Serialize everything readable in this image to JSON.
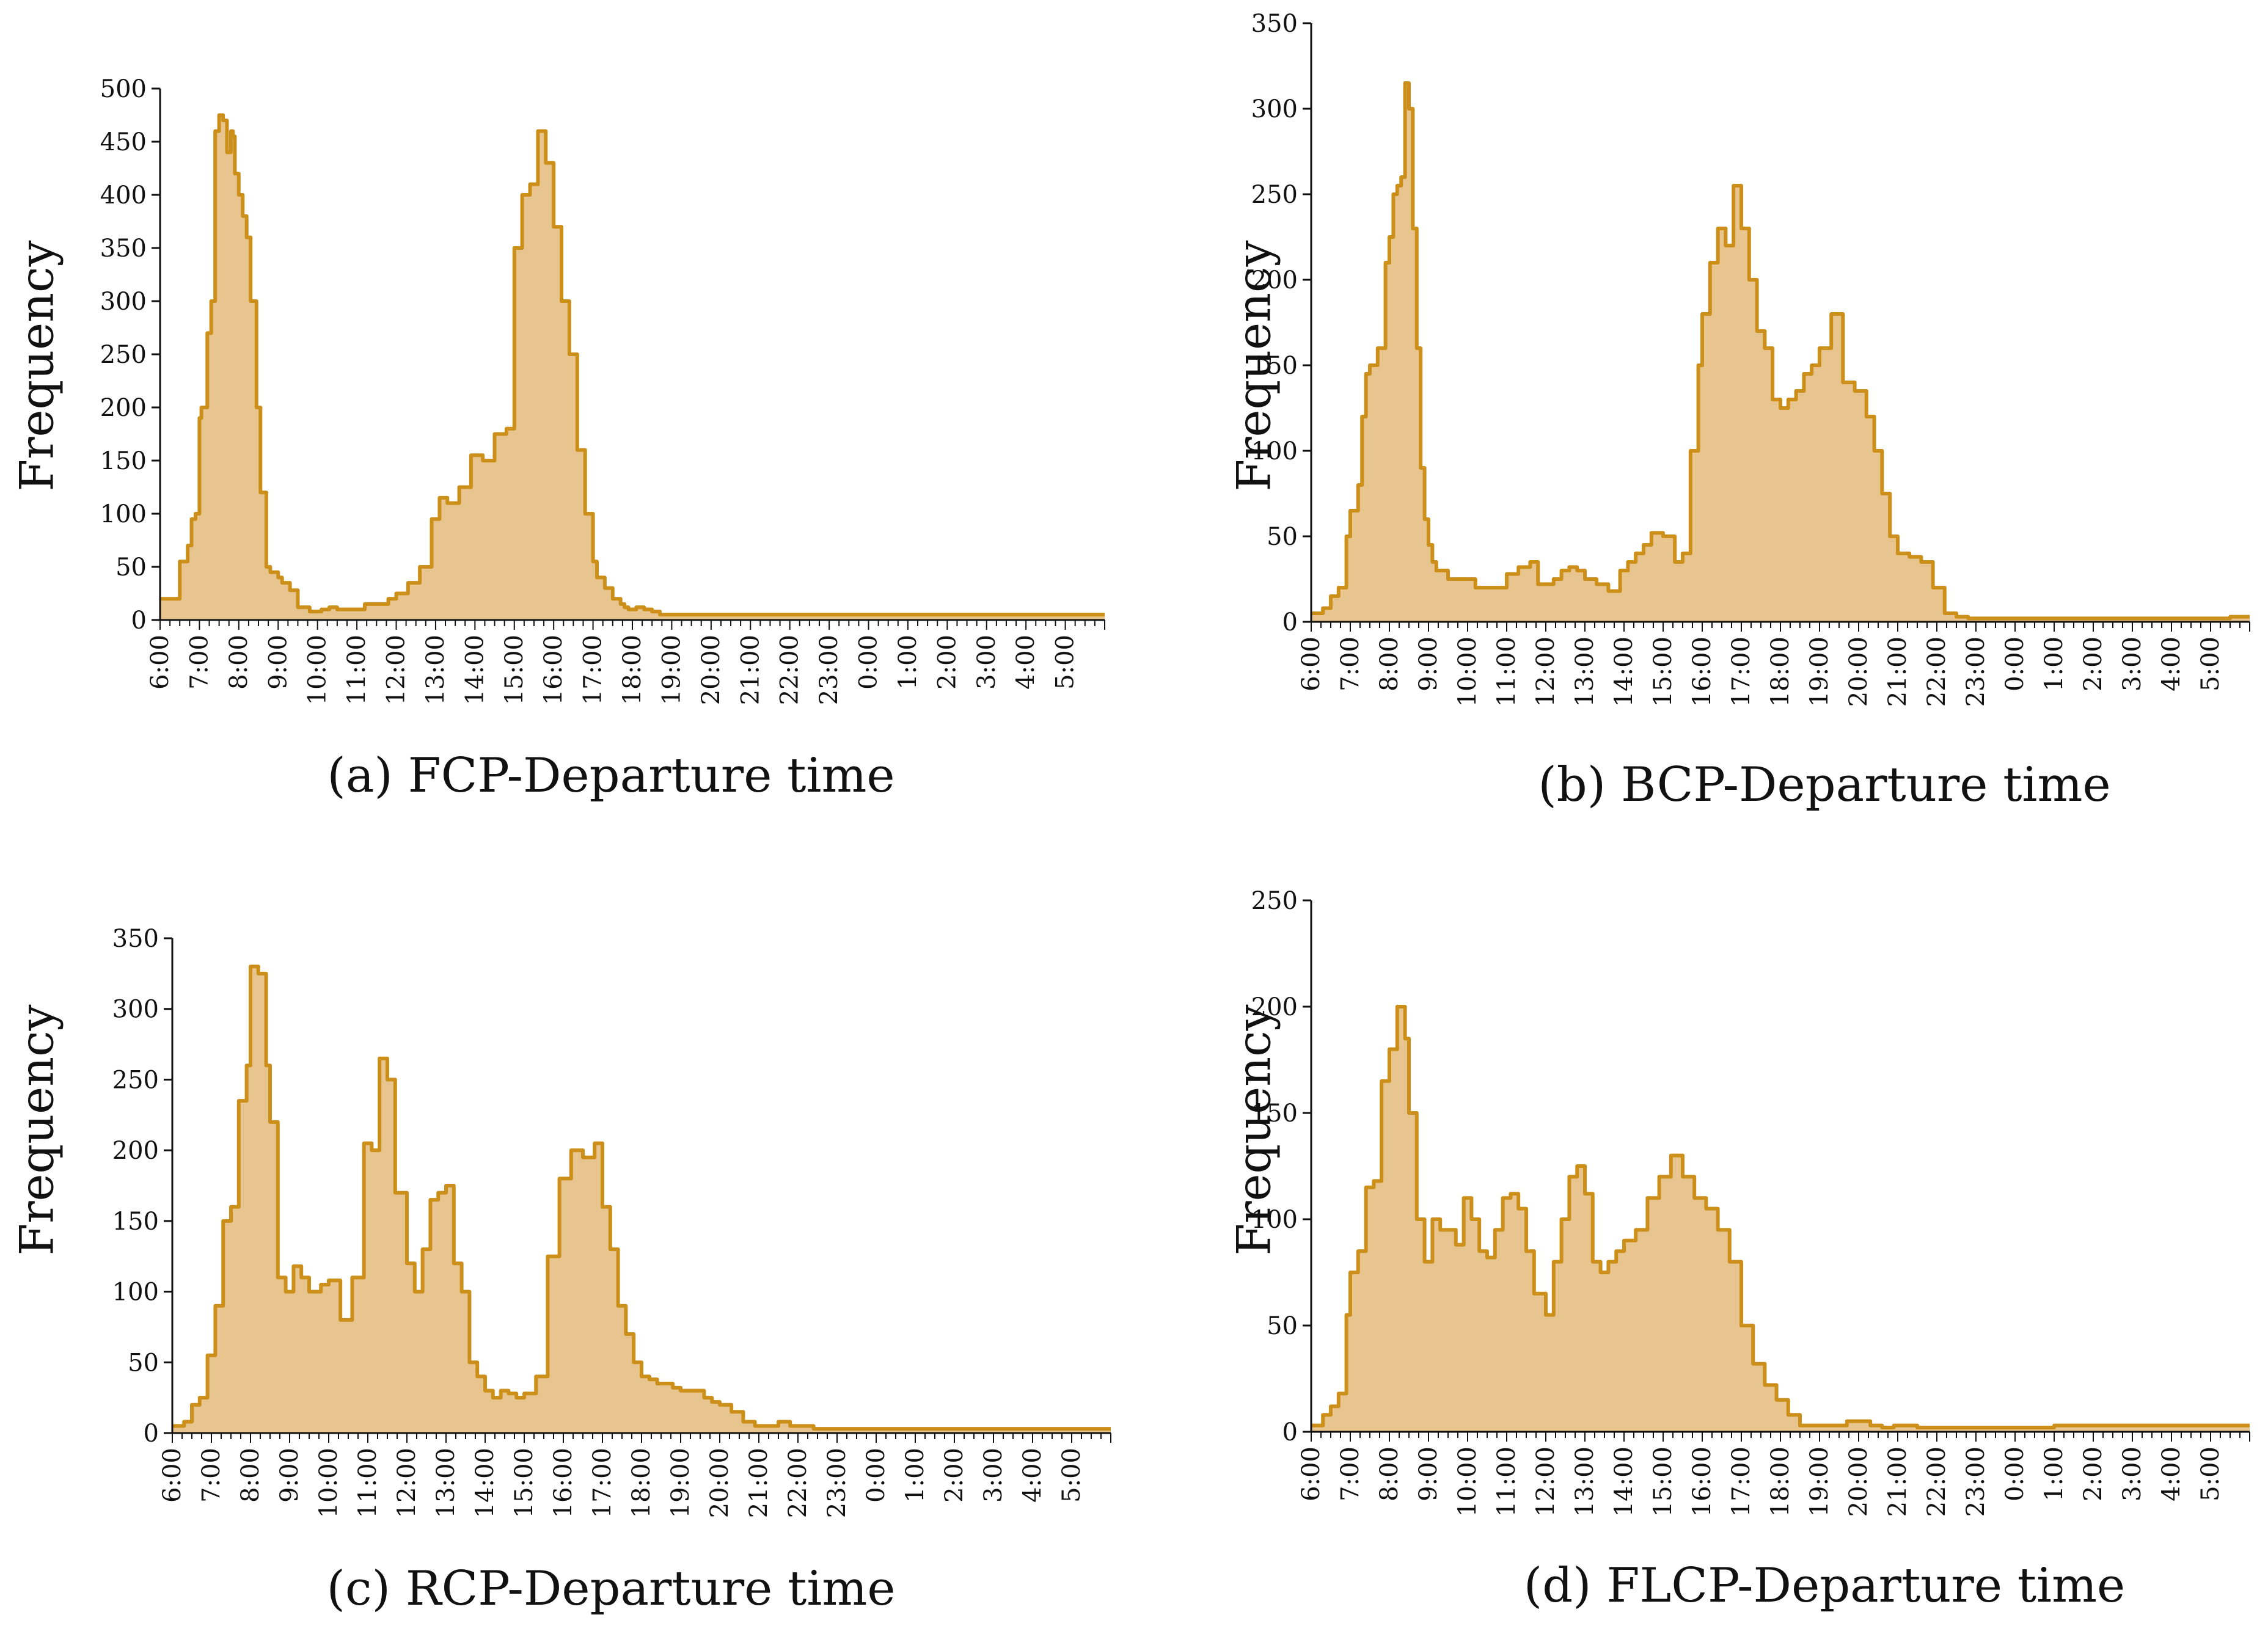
{
  "style": {
    "fill_color": "#e8c48e",
    "line_color": "#cc8f1a",
    "axis_color": "#111111"
  },
  "x_tick_labels": [
    "6:00",
    "7:00",
    "8:00",
    "9:00",
    "10:00",
    "11:00",
    "12:00",
    "13:00",
    "14:00",
    "15:00",
    "16:00",
    "17:00",
    "18:00",
    "19:00",
    "20:00",
    "21:00",
    "22:00",
    "23:00",
    "0:00",
    "1:00",
    "2:00",
    "3:00",
    "4:00",
    "5:00"
  ],
  "chart_data": [
    {
      "type": "area",
      "panel": "a",
      "title": "(a) FCP-Departure time",
      "xlabel": "",
      "ylabel": "Frequency",
      "ylim": [
        0,
        500
      ],
      "yticks": [
        0,
        50,
        100,
        150,
        200,
        250,
        300,
        350,
        400,
        450,
        500
      ],
      "x_hours_from_6": [
        0,
        0.4,
        0.5,
        0.7,
        0.8,
        0.9,
        1.0,
        1.05,
        1.2,
        1.3,
        1.35,
        1.4,
        1.5,
        1.6,
        1.7,
        1.8,
        1.85,
        1.9,
        2.0,
        2.1,
        2.2,
        2.3,
        2.45,
        2.55,
        2.7,
        2.8,
        2.9,
        3.0,
        3.1,
        3.3,
        3.5,
        3.6,
        3.8,
        4.1,
        4.3,
        4.5,
        4.7,
        5.0,
        5.2,
        5.5,
        5.8,
        6.0,
        6.3,
        6.6,
        6.9,
        7.1,
        7.3,
        7.6,
        7.9,
        8.2,
        8.5,
        8.8,
        9.0,
        9.2,
        9.4,
        9.6,
        9.8,
        10.0,
        10.2,
        10.4,
        10.6,
        10.8,
        11.0,
        11.1,
        11.3,
        11.5,
        11.7,
        11.8,
        11.9,
        12.0,
        12.1,
        12.2,
        12.3,
        12.5,
        12.7,
        12.9,
        13.1,
        13.3,
        13.5,
        13.8,
        14.0,
        14.3,
        14.6,
        15.0,
        15.5,
        16.0,
        16.5,
        17.0,
        17.5,
        18.0,
        18.5,
        19.0,
        20.0,
        21.0,
        22.0,
        23.0,
        23.9
      ],
      "values": [
        20,
        20,
        55,
        70,
        95,
        100,
        190,
        200,
        270,
        300,
        300,
        460,
        475,
        470,
        440,
        460,
        455,
        420,
        400,
        380,
        360,
        300,
        200,
        120,
        50,
        45,
        45,
        40,
        35,
        28,
        12,
        12,
        8,
        10,
        12,
        10,
        10,
        10,
        15,
        15,
        20,
        25,
        35,
        50,
        95,
        115,
        110,
        125,
        155,
        150,
        175,
        180,
        350,
        400,
        410,
        460,
        430,
        370,
        300,
        250,
        160,
        100,
        55,
        40,
        30,
        20,
        15,
        12,
        10,
        10,
        12,
        12,
        10,
        8,
        5,
        5,
        5,
        5,
        5,
        5,
        5,
        5,
        5,
        5,
        5,
        5,
        5,
        5,
        5,
        5,
        5,
        5,
        5,
        5,
        5,
        5,
        5
      ]
    },
    {
      "type": "area",
      "panel": "b",
      "title": "(b) BCP-Departure time",
      "xlabel": "",
      "ylabel": "Frequency",
      "ylim": [
        0,
        350
      ],
      "yticks": [
        0,
        50,
        100,
        150,
        200,
        250,
        300,
        350
      ],
      "x_hours_from_6": [
        0,
        0.3,
        0.5,
        0.7,
        0.9,
        1.0,
        1.2,
        1.3,
        1.4,
        1.5,
        1.7,
        1.9,
        2.0,
        2.1,
        2.2,
        2.3,
        2.4,
        2.5,
        2.6,
        2.7,
        2.8,
        2.9,
        3.0,
        3.1,
        3.2,
        3.5,
        3.8,
        4.0,
        4.2,
        4.5,
        4.8,
        5.0,
        5.3,
        5.6,
        5.8,
        6.0,
        6.2,
        6.4,
        6.6,
        6.8,
        7.0,
        7.3,
        7.6,
        7.9,
        8.1,
        8.3,
        8.5,
        8.7,
        9.0,
        9.3,
        9.5,
        9.7,
        9.9,
        10.0,
        10.2,
        10.4,
        10.6,
        10.8,
        11.0,
        11.2,
        11.4,
        11.6,
        11.8,
        12.0,
        12.2,
        12.4,
        12.6,
        12.8,
        13.0,
        13.3,
        13.6,
        13.9,
        14.2,
        14.4,
        14.6,
        14.8,
        15.0,
        15.3,
        15.6,
        15.9,
        16.2,
        16.5,
        16.8,
        17.0,
        17.3,
        17.6,
        17.9,
        18.2,
        18.5,
        18.8,
        19.0,
        19.5,
        20.0,
        21.0,
        22.0,
        23.0,
        23.5,
        23.9
      ],
      "values": [
        5,
        8,
        15,
        20,
        50,
        65,
        80,
        120,
        145,
        150,
        160,
        210,
        225,
        250,
        255,
        260,
        315,
        300,
        230,
        160,
        90,
        60,
        45,
        35,
        30,
        25,
        25,
        25,
        20,
        20,
        20,
        28,
        32,
        35,
        22,
        22,
        25,
        30,
        32,
        30,
        25,
        22,
        18,
        30,
        35,
        40,
        45,
        52,
        50,
        35,
        40,
        100,
        150,
        180,
        210,
        230,
        220,
        255,
        230,
        200,
        170,
        160,
        130,
        125,
        130,
        135,
        145,
        150,
        160,
        180,
        140,
        135,
        120,
        100,
        75,
        50,
        40,
        38,
        35,
        20,
        5,
        3,
        2,
        2,
        2,
        2,
        2,
        2,
        2,
        2,
        2,
        2,
        2,
        2,
        2,
        2,
        3,
        3
      ]
    },
    {
      "type": "area",
      "panel": "c",
      "title": "(c) RCP-Departure time",
      "xlabel": "",
      "ylabel": "Frequency",
      "ylim": [
        0,
        350
      ],
      "yticks": [
        0,
        50,
        100,
        150,
        200,
        250,
        300,
        350
      ],
      "x_hours_from_6": [
        0,
        0.3,
        0.5,
        0.7,
        0.9,
        1.1,
        1.3,
        1.5,
        1.7,
        1.9,
        2.0,
        2.2,
        2.4,
        2.5,
        2.7,
        2.9,
        3.1,
        3.3,
        3.5,
        3.8,
        4.0,
        4.3,
        4.6,
        4.9,
        5.1,
        5.3,
        5.5,
        5.7,
        6.0,
        6.2,
        6.4,
        6.6,
        6.8,
        7.0,
        7.2,
        7.4,
        7.6,
        7.8,
        8.0,
        8.2,
        8.4,
        8.6,
        8.8,
        9.0,
        9.3,
        9.6,
        9.9,
        10.2,
        10.5,
        10.8,
        11.0,
        11.2,
        11.4,
        11.6,
        11.8,
        12.0,
        12.2,
        12.4,
        12.6,
        12.8,
        13.0,
        13.2,
        13.4,
        13.6,
        13.8,
        14.0,
        14.3,
        14.6,
        14.9,
        15.2,
        15.5,
        15.8,
        16.1,
        16.4,
        16.7,
        17.0,
        17.3,
        17.6,
        18.0,
        18.3,
        18.6,
        19.0,
        19.5,
        20.0,
        21.0,
        22.0,
        23.0,
        23.9
      ],
      "values": [
        5,
        8,
        20,
        25,
        55,
        90,
        150,
        160,
        235,
        260,
        330,
        325,
        260,
        220,
        110,
        100,
        118,
        110,
        100,
        105,
        108,
        80,
        110,
        205,
        200,
        265,
        250,
        170,
        120,
        100,
        130,
        165,
        170,
        175,
        120,
        100,
        50,
        40,
        30,
        25,
        30,
        28,
        25,
        28,
        40,
        125,
        180,
        200,
        195,
        205,
        160,
        130,
        90,
        70,
        50,
        40,
        38,
        35,
        35,
        32,
        30,
        30,
        30,
        25,
        22,
        20,
        15,
        8,
        5,
        5,
        8,
        5,
        5,
        3,
        3,
        3,
        3,
        3,
        3,
        3,
        3,
        3,
        3,
        3,
        3,
        3,
        3,
        3
      ]
    },
    {
      "type": "area",
      "panel": "d",
      "title": "(d) FLCP-Departure time",
      "xlabel": "",
      "ylabel": "Frequency",
      "ylim": [
        0,
        250
      ],
      "yticks": [
        0,
        50,
        100,
        150,
        200,
        250
      ],
      "x_hours_from_6": [
        0,
        0.3,
        0.5,
        0.7,
        0.9,
        1.0,
        1.2,
        1.4,
        1.6,
        1.8,
        2.0,
        2.2,
        2.4,
        2.5,
        2.7,
        2.9,
        3.1,
        3.3,
        3.5,
        3.7,
        3.9,
        4.1,
        4.3,
        4.5,
        4.7,
        4.9,
        5.1,
        5.3,
        5.5,
        5.7,
        6.0,
        6.2,
        6.4,
        6.6,
        6.8,
        7.0,
        7.2,
        7.4,
        7.6,
        7.8,
        8.0,
        8.3,
        8.6,
        8.9,
        9.2,
        9.5,
        9.8,
        10.1,
        10.4,
        10.7,
        11.0,
        11.3,
        11.6,
        11.9,
        12.2,
        12.5,
        12.8,
        13.1,
        13.4,
        13.7,
        14.0,
        14.3,
        14.6,
        14.9,
        15.2,
        15.5,
        15.8,
        16.0,
        16.5,
        17.0,
        17.5,
        18.0,
        18.5,
        19.0,
        19.5,
        20.0,
        20.5,
        21.0,
        21.5,
        22.0,
        22.5,
        23.0,
        23.5,
        23.9
      ],
      "values": [
        3,
        8,
        12,
        18,
        55,
        75,
        85,
        115,
        118,
        165,
        180,
        200,
        185,
        150,
        100,
        80,
        100,
        95,
        95,
        88,
        110,
        100,
        85,
        82,
        95,
        110,
        112,
        105,
        85,
        65,
        55,
        80,
        100,
        120,
        125,
        112,
        80,
        75,
        80,
        85,
        90,
        95,
        110,
        120,
        130,
        120,
        110,
        105,
        95,
        80,
        50,
        32,
        22,
        15,
        8,
        3,
        3,
        3,
        3,
        5,
        5,
        3,
        2,
        3,
        3,
        2,
        2,
        2,
        2,
        2,
        2,
        2,
        2,
        3,
        3,
        3,
        3,
        3,
        3,
        3,
        3,
        3,
        3,
        3
      ]
    }
  ]
}
